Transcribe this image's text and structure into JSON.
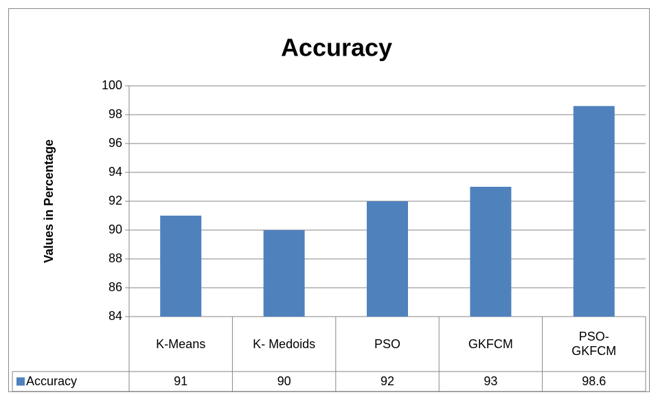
{
  "chart_data": {
    "type": "bar",
    "title": "Accuracy",
    "y_label": "Values in Percentage",
    "categories": [
      "K-Means",
      "K- Medoids",
      "PSO",
      "GKFCM",
      "PSO-GKFCM"
    ],
    "series": [
      {
        "name": "Accuracy",
        "color": "#4f81bd",
        "values": [
          91,
          90,
          92,
          93,
          98.6
        ]
      }
    ],
    "ylim": [
      84,
      100
    ],
    "yticks": [
      84,
      86,
      88,
      90,
      92,
      94,
      96,
      98,
      100
    ],
    "grid": true
  }
}
